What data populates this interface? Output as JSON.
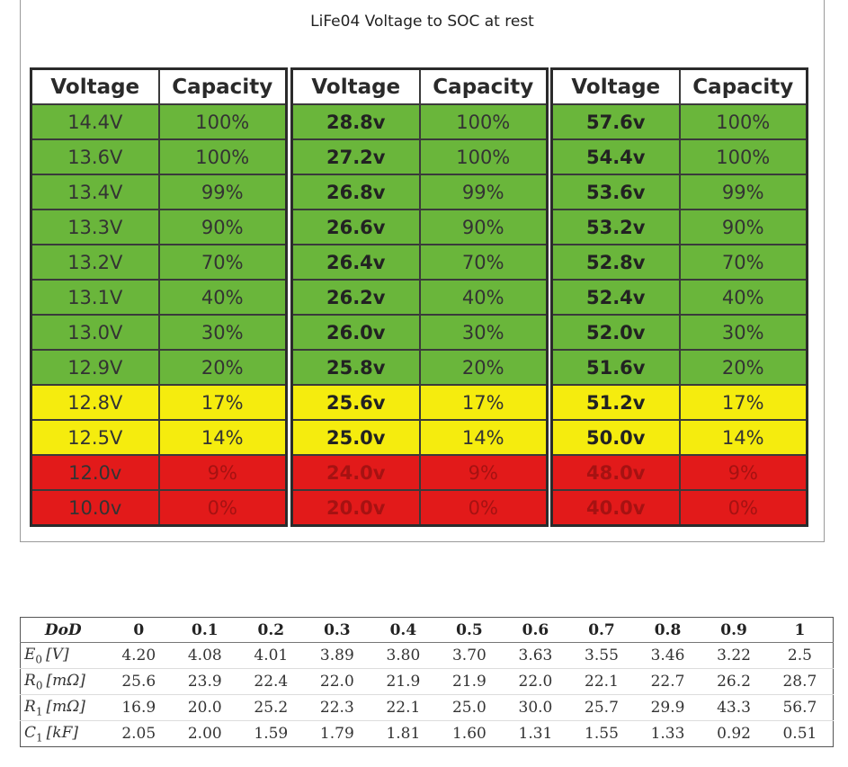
{
  "figure": {
    "title": "LiFe04 Voltage to SOC at rest",
    "headers": {
      "voltage": "Voltage",
      "capacity": "Capacity"
    },
    "tables": [
      {
        "rows": [
          {
            "voltage": "14.4V",
            "capacity": "100%",
            "color": "green"
          },
          {
            "voltage": "13.6V",
            "capacity": "100%",
            "color": "green"
          },
          {
            "voltage": "13.4V",
            "capacity": "99%",
            "color": "green"
          },
          {
            "voltage": "13.3V",
            "capacity": "90%",
            "color": "green"
          },
          {
            "voltage": "13.2V",
            "capacity": "70%",
            "color": "green"
          },
          {
            "voltage": "13.1V",
            "capacity": "40%",
            "color": "green"
          },
          {
            "voltage": "13.0V",
            "capacity": "30%",
            "color": "green"
          },
          {
            "voltage": "12.9V",
            "capacity": "20%",
            "color": "green"
          },
          {
            "voltage": "12.8V",
            "capacity": "17%",
            "color": "yellow"
          },
          {
            "voltage": "12.5V",
            "capacity": "14%",
            "color": "yellow"
          },
          {
            "voltage": "12.0v",
            "capacity": "9%",
            "color": "red"
          },
          {
            "voltage": "10.0v",
            "capacity": "0%",
            "color": "red"
          }
        ]
      },
      {
        "rows": [
          {
            "voltage": "28.8v",
            "capacity": "100%",
            "color": "green"
          },
          {
            "voltage": "27.2v",
            "capacity": "100%",
            "color": "green"
          },
          {
            "voltage": "26.8v",
            "capacity": "99%",
            "color": "green"
          },
          {
            "voltage": "26.6v",
            "capacity": "90%",
            "color": "green"
          },
          {
            "voltage": "26.4v",
            "capacity": "70%",
            "color": "green"
          },
          {
            "voltage": "26.2v",
            "capacity": "40%",
            "color": "green"
          },
          {
            "voltage": "26.0v",
            "capacity": "30%",
            "color": "green"
          },
          {
            "voltage": "25.8v",
            "capacity": "20%",
            "color": "green"
          },
          {
            "voltage": "25.6v",
            "capacity": "17%",
            "color": "yellow"
          },
          {
            "voltage": "25.0v",
            "capacity": "14%",
            "color": "yellow"
          },
          {
            "voltage": "24.0v",
            "capacity": "9%",
            "color": "red"
          },
          {
            "voltage": "20.0v",
            "capacity": "0%",
            "color": "red"
          }
        ]
      },
      {
        "rows": [
          {
            "voltage": "57.6v",
            "capacity": "100%",
            "color": "green"
          },
          {
            "voltage": "54.4v",
            "capacity": "100%",
            "color": "green"
          },
          {
            "voltage": "53.6v",
            "capacity": "99%",
            "color": "green"
          },
          {
            "voltage": "53.2v",
            "capacity": "90%",
            "color": "green"
          },
          {
            "voltage": "52.8v",
            "capacity": "70%",
            "color": "green"
          },
          {
            "voltage": "52.4v",
            "capacity": "40%",
            "color": "green"
          },
          {
            "voltage": "52.0v",
            "capacity": "30%",
            "color": "green"
          },
          {
            "voltage": "51.6v",
            "capacity": "20%",
            "color": "green"
          },
          {
            "voltage": "51.2v",
            "capacity": "17%",
            "color": "yellow"
          },
          {
            "voltage": "50.0v",
            "capacity": "14%",
            "color": "yellow"
          },
          {
            "voltage": "48.0v",
            "capacity": "9%",
            "color": "red"
          },
          {
            "voltage": "40.0v",
            "capacity": "0%",
            "color": "red"
          }
        ]
      }
    ],
    "colors": {
      "green": "#6ab63b",
      "yellow": "#f5ec0e",
      "red": "#e21a1a"
    }
  },
  "param_table": {
    "header_label": "DoD",
    "dod": [
      "0",
      "0.1",
      "0.2",
      "0.3",
      "0.4",
      "0.5",
      "0.6",
      "0.7",
      "0.8",
      "0.9",
      "1"
    ],
    "rows": [
      {
        "symbol": "E",
        "sub": "0",
        "unit": "[V]",
        "values": [
          "4.20",
          "4.08",
          "4.01",
          "3.89",
          "3.80",
          "3.70",
          "3.63",
          "3.55",
          "3.46",
          "3.22",
          "2.5"
        ]
      },
      {
        "symbol": "R",
        "sub": "0",
        "unit": "[mΩ]",
        "values": [
          "25.6",
          "23.9",
          "22.4",
          "22.0",
          "21.9",
          "21.9",
          "22.0",
          "22.1",
          "22.7",
          "26.2",
          "28.7"
        ]
      },
      {
        "symbol": "R",
        "sub": "1",
        "unit": "[mΩ]",
        "values": [
          "16.9",
          "20.0",
          "25.2",
          "22.3",
          "22.1",
          "25.0",
          "30.0",
          "25.7",
          "29.9",
          "43.3",
          "56.7"
        ]
      },
      {
        "symbol": "C",
        "sub": "1",
        "unit": "[kF]",
        "values": [
          "2.05",
          "2.00",
          "1.59",
          "1.79",
          "1.81",
          "1.60",
          "1.31",
          "1.55",
          "1.33",
          "0.92",
          "0.51"
        ]
      }
    ]
  }
}
